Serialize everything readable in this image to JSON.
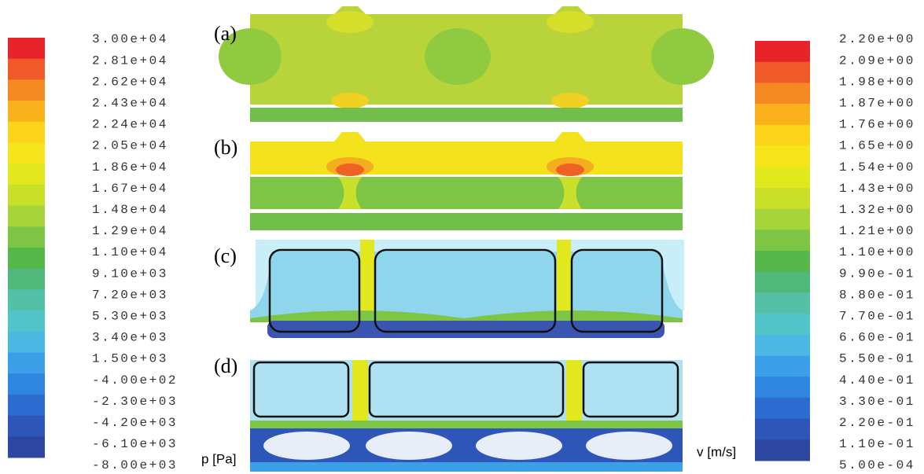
{
  "pressure_colorbar": {
    "labels": [
      "3.00e+04",
      "2.81e+04",
      "2.62e+04",
      "2.43e+04",
      "2.24e+04",
      "2.05e+04",
      "1.86e+04",
      "1.67e+04",
      "1.48e+04",
      "1.29e+04",
      "1.10e+04",
      "9.10e+03",
      "7.20e+03",
      "5.30e+03",
      "3.40e+03",
      "1.50e+03",
      "-4.00e+02",
      "-2.30e+03",
      "-4.20e+03",
      "-6.10e+03",
      "-8.00e+03"
    ],
    "unit": "p [Pa]"
  },
  "velocity_colorbar": {
    "labels": [
      "2.20e+00",
      "2.09e+00",
      "1.98e+00",
      "1.87e+00",
      "1.76e+00",
      "1.65e+00",
      "1.54e+00",
      "1.43e+00",
      "1.32e+00",
      "1.21e+00",
      "1.10e+00",
      "9.90e-01",
      "8.80e-01",
      "7.70e-01",
      "6.60e-01",
      "5.50e-01",
      "4.40e-01",
      "3.30e-01",
      "2.20e-01",
      "1.10e-01",
      "5.00e-04"
    ],
    "unit": "v [m/s]"
  },
  "colors": [
    "#e8242a",
    "#f05a28",
    "#f58a22",
    "#f9b21c",
    "#fcd51a",
    "#f5e51a",
    "#e2e81e",
    "#c8e02a",
    "#a6d43a",
    "#7fc545",
    "#56b84a",
    "#4fb87a",
    "#55c0a8",
    "#52c4c8",
    "#4ab8e0",
    "#3ca0e8",
    "#2f86e0",
    "#2c6cd0",
    "#2e56b8",
    "#2d47a0"
  ],
  "panels": [
    {
      "label": "(a)"
    },
    {
      "label": "(b)"
    },
    {
      "label": "(c)"
    },
    {
      "label": "(d)"
    }
  ]
}
